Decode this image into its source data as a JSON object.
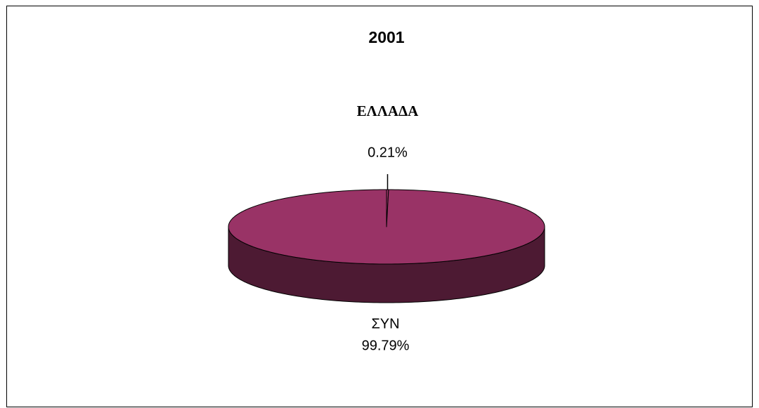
{
  "chart_data": {
    "type": "pie",
    "title": "2001",
    "categories": [
      "ΕΛΛΑΔΑ",
      "ΣΥΝ"
    ],
    "values": [
      0.21,
      99.79
    ],
    "value_labels": [
      "0.21%",
      "99.79%"
    ],
    "colors": [
      "#993366",
      "#993366"
    ]
  }
}
